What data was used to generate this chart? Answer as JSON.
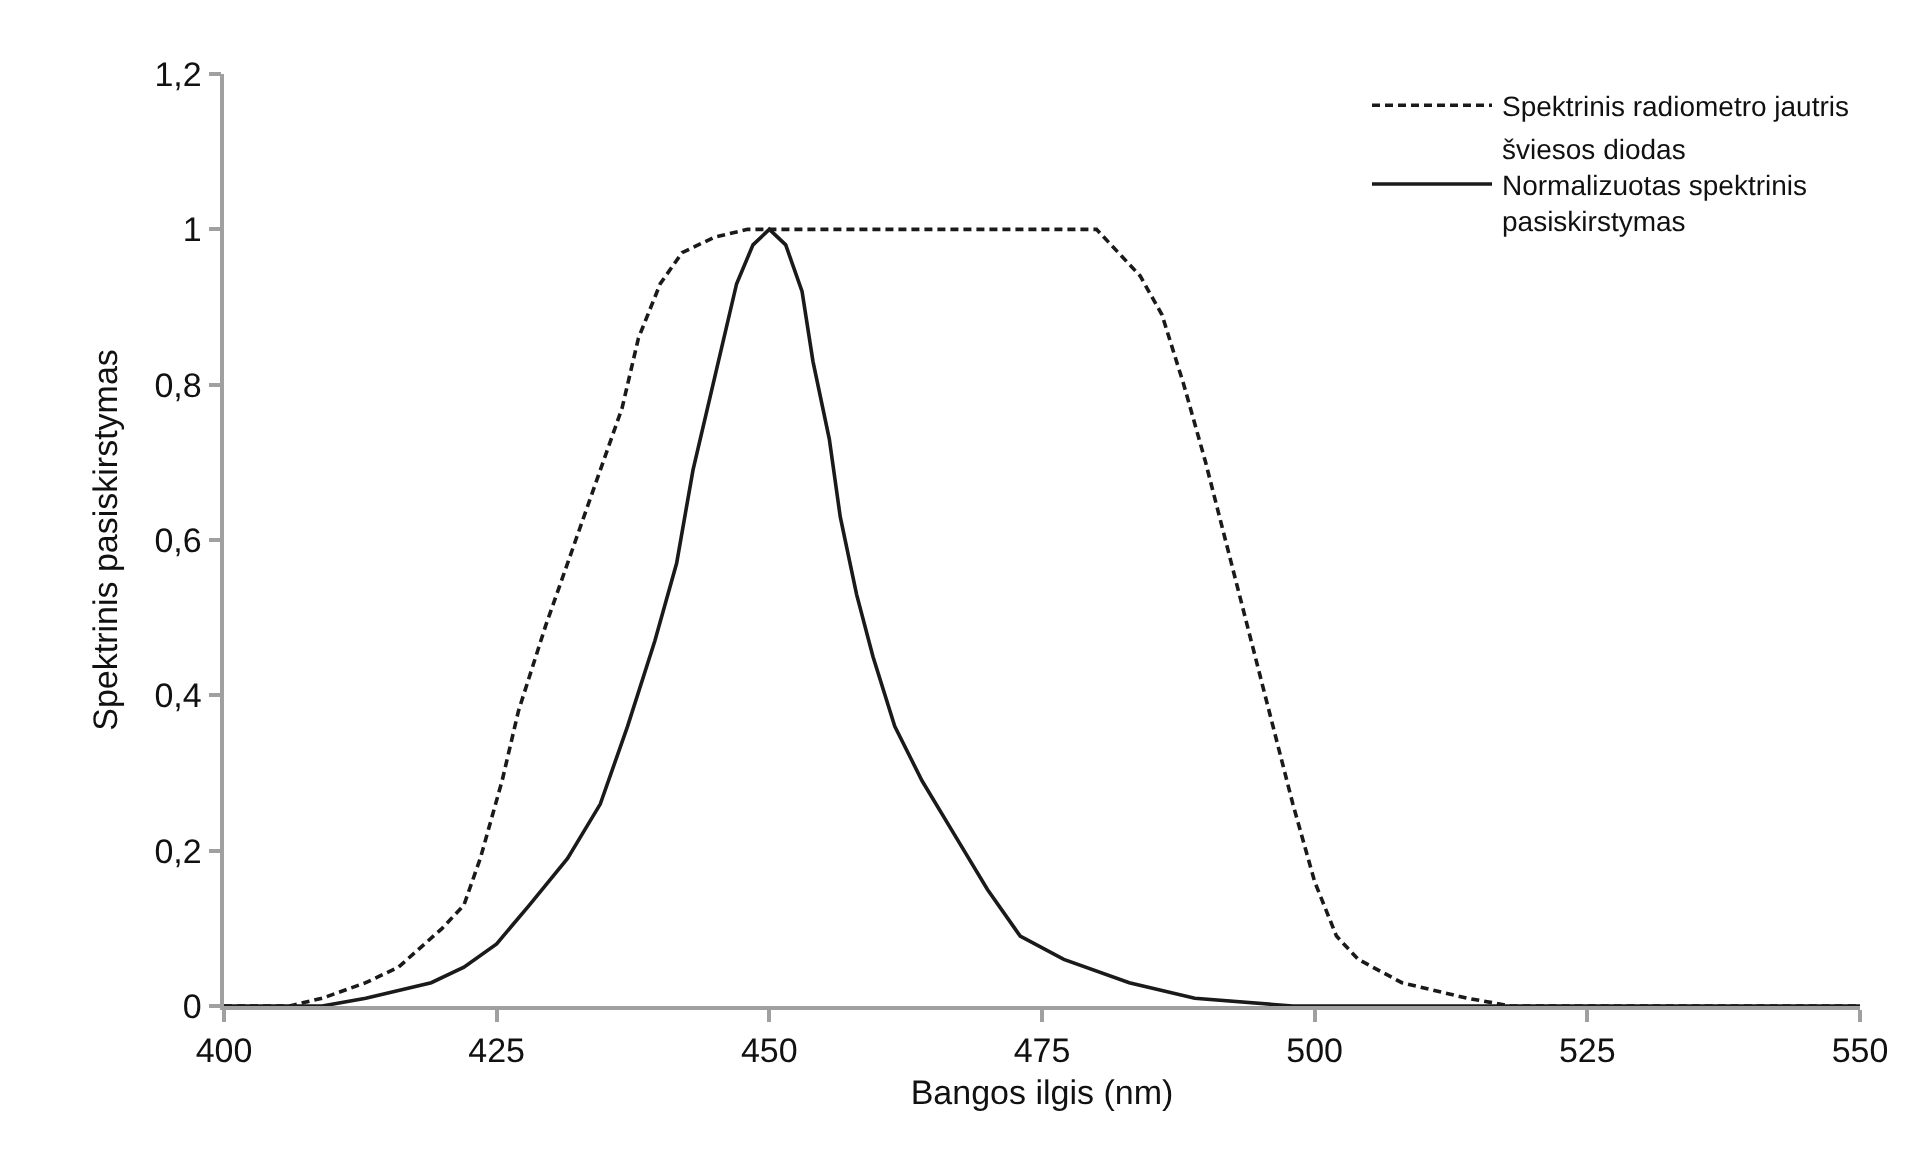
{
  "chart_data": {
    "type": "line",
    "xlabel": "Bangos ilgis (nm)",
    "ylabel": "Spektrinis pasiskirstymas",
    "series": [
      {
        "name": "Spektrinis radiometro jautris",
        "color": "#1a1a1a",
        "line_style": "dashed",
        "x": [
          400,
          406,
          409,
          413,
          416,
          420,
          422,
          423.5,
          425.5,
          427,
          429.5,
          432,
          434.5,
          436.5,
          438,
          440,
          442,
          445,
          448,
          480,
          482,
          484,
          486,
          488,
          490,
          492,
          494,
          496,
          498,
          500,
          502,
          504,
          508,
          514,
          518,
          550
        ],
        "values": [
          0,
          0,
          0.01,
          0.03,
          0.05,
          0.1,
          0.13,
          0.19,
          0.29,
          0.38,
          0.49,
          0.59,
          0.69,
          0.77,
          0.86,
          0.93,
          0.97,
          0.99,
          1,
          1,
          0.97,
          0.94,
          0.89,
          0.8,
          0.7,
          0.59,
          0.48,
          0.37,
          0.26,
          0.16,
          0.09,
          0.06,
          0.03,
          0.01,
          0,
          0
        ]
      },
      {
        "name": "šviesos diodas\nNormalizuotas spektrinis\npasiskirstymas",
        "color": "#1a1a1a",
        "line_style": "solid",
        "x": [
          400,
          409,
          413,
          416,
          419,
          422,
          425,
          428,
          431.5,
          434.5,
          437,
          439.5,
          441.5,
          443,
          445,
          447,
          448.5,
          450,
          451.5,
          453,
          454,
          455.5,
          456.5,
          458,
          459.5,
          461.5,
          464,
          467,
          470,
          473,
          477,
          483,
          489,
          498,
          520,
          550
        ],
        "values": [
          0,
          0,
          0.01,
          0.02,
          0.03,
          0.05,
          0.08,
          0.13,
          0.19,
          0.26,
          0.36,
          0.47,
          0.57,
          0.69,
          0.81,
          0.93,
          0.98,
          1,
          0.98,
          0.92,
          0.83,
          0.73,
          0.63,
          0.53,
          0.45,
          0.36,
          0.29,
          0.22,
          0.15,
          0.09,
          0.06,
          0.03,
          0.01,
          0,
          0,
          0
        ]
      }
    ],
    "xlim": [
      400,
      550
    ],
    "xticks": [
      400,
      425,
      450,
      475,
      500,
      525,
      550
    ],
    "ylim": [
      0,
      1.2
    ],
    "yticks": [
      0,
      {
        "value": 0.2,
        "label": "0,2"
      },
      {
        "value": 0.4,
        "label": "0,4"
      },
      {
        "value": 0.6,
        "label": "0,6"
      },
      {
        "value": 0.8,
        "label": "0,8"
      },
      1,
      {
        "value": 1.2,
        "label": "1,2"
      }
    ],
    "legend": "top right"
  }
}
